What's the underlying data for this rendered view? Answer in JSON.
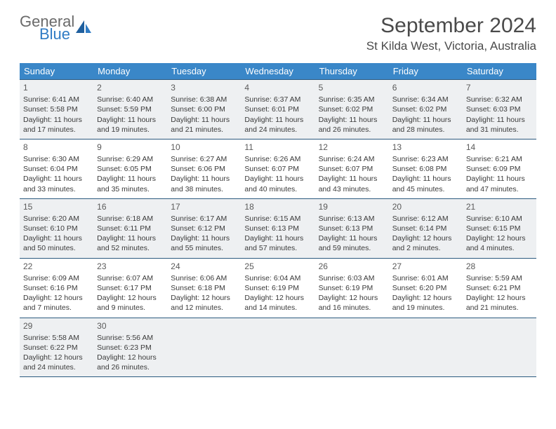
{
  "logo": {
    "general": "General",
    "blue": "Blue"
  },
  "title": "September 2024",
  "location": "St Kilda West, Victoria, Australia",
  "header_bg": "#3a87c8",
  "row_border": "#2b5a7f",
  "shade_bg": "#eef0f2",
  "day_names": [
    "Sunday",
    "Monday",
    "Tuesday",
    "Wednesday",
    "Thursday",
    "Friday",
    "Saturday"
  ],
  "weeks": [
    {
      "shaded": true,
      "days": [
        {
          "n": "1",
          "sr": "6:41 AM",
          "ss": "5:58 PM",
          "dl": "11 hours and 17 minutes."
        },
        {
          "n": "2",
          "sr": "6:40 AM",
          "ss": "5:59 PM",
          "dl": "11 hours and 19 minutes."
        },
        {
          "n": "3",
          "sr": "6:38 AM",
          "ss": "6:00 PM",
          "dl": "11 hours and 21 minutes."
        },
        {
          "n": "4",
          "sr": "6:37 AM",
          "ss": "6:01 PM",
          "dl": "11 hours and 24 minutes."
        },
        {
          "n": "5",
          "sr": "6:35 AM",
          "ss": "6:02 PM",
          "dl": "11 hours and 26 minutes."
        },
        {
          "n": "6",
          "sr": "6:34 AM",
          "ss": "6:02 PM",
          "dl": "11 hours and 28 minutes."
        },
        {
          "n": "7",
          "sr": "6:32 AM",
          "ss": "6:03 PM",
          "dl": "11 hours and 31 minutes."
        }
      ]
    },
    {
      "shaded": false,
      "days": [
        {
          "n": "8",
          "sr": "6:30 AM",
          "ss": "6:04 PM",
          "dl": "11 hours and 33 minutes."
        },
        {
          "n": "9",
          "sr": "6:29 AM",
          "ss": "6:05 PM",
          "dl": "11 hours and 35 minutes."
        },
        {
          "n": "10",
          "sr": "6:27 AM",
          "ss": "6:06 PM",
          "dl": "11 hours and 38 minutes."
        },
        {
          "n": "11",
          "sr": "6:26 AM",
          "ss": "6:07 PM",
          "dl": "11 hours and 40 minutes."
        },
        {
          "n": "12",
          "sr": "6:24 AM",
          "ss": "6:07 PM",
          "dl": "11 hours and 43 minutes."
        },
        {
          "n": "13",
          "sr": "6:23 AM",
          "ss": "6:08 PM",
          "dl": "11 hours and 45 minutes."
        },
        {
          "n": "14",
          "sr": "6:21 AM",
          "ss": "6:09 PM",
          "dl": "11 hours and 47 minutes."
        }
      ]
    },
    {
      "shaded": true,
      "days": [
        {
          "n": "15",
          "sr": "6:20 AM",
          "ss": "6:10 PM",
          "dl": "11 hours and 50 minutes."
        },
        {
          "n": "16",
          "sr": "6:18 AM",
          "ss": "6:11 PM",
          "dl": "11 hours and 52 minutes."
        },
        {
          "n": "17",
          "sr": "6:17 AM",
          "ss": "6:12 PM",
          "dl": "11 hours and 55 minutes."
        },
        {
          "n": "18",
          "sr": "6:15 AM",
          "ss": "6:13 PM",
          "dl": "11 hours and 57 minutes."
        },
        {
          "n": "19",
          "sr": "6:13 AM",
          "ss": "6:13 PM",
          "dl": "11 hours and 59 minutes."
        },
        {
          "n": "20",
          "sr": "6:12 AM",
          "ss": "6:14 PM",
          "dl": "12 hours and 2 minutes."
        },
        {
          "n": "21",
          "sr": "6:10 AM",
          "ss": "6:15 PM",
          "dl": "12 hours and 4 minutes."
        }
      ]
    },
    {
      "shaded": false,
      "days": [
        {
          "n": "22",
          "sr": "6:09 AM",
          "ss": "6:16 PM",
          "dl": "12 hours and 7 minutes."
        },
        {
          "n": "23",
          "sr": "6:07 AM",
          "ss": "6:17 PM",
          "dl": "12 hours and 9 minutes."
        },
        {
          "n": "24",
          "sr": "6:06 AM",
          "ss": "6:18 PM",
          "dl": "12 hours and 12 minutes."
        },
        {
          "n": "25",
          "sr": "6:04 AM",
          "ss": "6:19 PM",
          "dl": "12 hours and 14 minutes."
        },
        {
          "n": "26",
          "sr": "6:03 AM",
          "ss": "6:19 PM",
          "dl": "12 hours and 16 minutes."
        },
        {
          "n": "27",
          "sr": "6:01 AM",
          "ss": "6:20 PM",
          "dl": "12 hours and 19 minutes."
        },
        {
          "n": "28",
          "sr": "5:59 AM",
          "ss": "6:21 PM",
          "dl": "12 hours and 21 minutes."
        }
      ]
    },
    {
      "shaded": true,
      "days": [
        {
          "n": "29",
          "sr": "5:58 AM",
          "ss": "6:22 PM",
          "dl": "12 hours and 24 minutes."
        },
        {
          "n": "30",
          "sr": "5:56 AM",
          "ss": "6:23 PM",
          "dl": "12 hours and 26 minutes."
        },
        {
          "n": "",
          "sr": "",
          "ss": "",
          "dl": ""
        },
        {
          "n": "",
          "sr": "",
          "ss": "",
          "dl": ""
        },
        {
          "n": "",
          "sr": "",
          "ss": "",
          "dl": ""
        },
        {
          "n": "",
          "sr": "",
          "ss": "",
          "dl": ""
        },
        {
          "n": "",
          "sr": "",
          "ss": "",
          "dl": ""
        }
      ]
    }
  ],
  "labels": {
    "sunrise": "Sunrise:",
    "sunset": "Sunset:",
    "daylight": "Daylight:"
  }
}
